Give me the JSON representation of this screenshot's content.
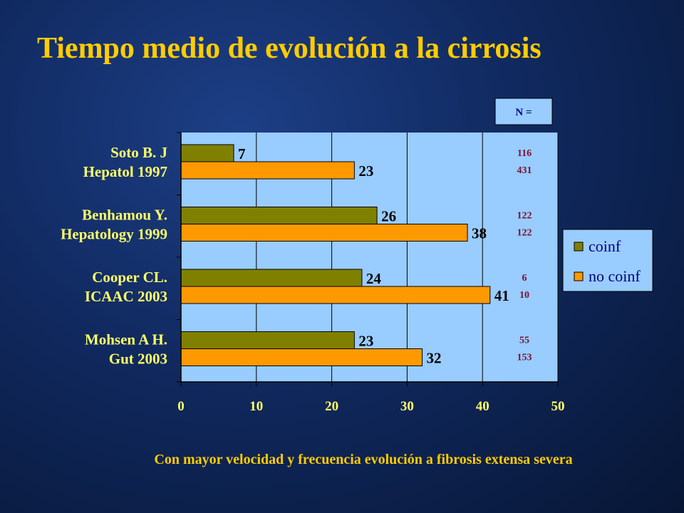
{
  "title": "Tiempo medio de evolución a la cirrosis",
  "footer": "Con mayor velocidad y frecuencia evolución a fibrosis extensa severa",
  "n_header": "N =",
  "colors": {
    "plot_bg": "#99ccff",
    "coinf": "#808000",
    "no_coinf": "#ff9900",
    "title": "#ffcc00",
    "axis_text": "#ffff66",
    "n_values": "#7a1030"
  },
  "chart_data": {
    "type": "bar",
    "orientation": "horizontal",
    "title": "Tiempo medio de evolución a la cirrosis",
    "xlim": [
      0,
      50
    ],
    "xticks": [
      "0",
      "10",
      "20",
      "30",
      "40",
      "50"
    ],
    "grid": true,
    "legend": "right",
    "categories": [
      {
        "line1": "Soto B. J",
        "line2": "Hepatol 1997"
      },
      {
        "line1": "Benhamou Y.",
        "line2": "Hepatology 1999"
      },
      {
        "line1": "Cooper CL.",
        "line2": "ICAAC 2003"
      },
      {
        "line1": "Mohsen A H.",
        "line2": "Gut 2003"
      }
    ],
    "series": [
      {
        "name": "coinf",
        "values": [
          7,
          26,
          24,
          23
        ],
        "n": [
          "116",
          "122",
          "6",
          "55"
        ]
      },
      {
        "name": "no coinf",
        "values": [
          23,
          38,
          41,
          32
        ],
        "n": [
          "431",
          "122",
          "10",
          "153"
        ]
      }
    ]
  }
}
